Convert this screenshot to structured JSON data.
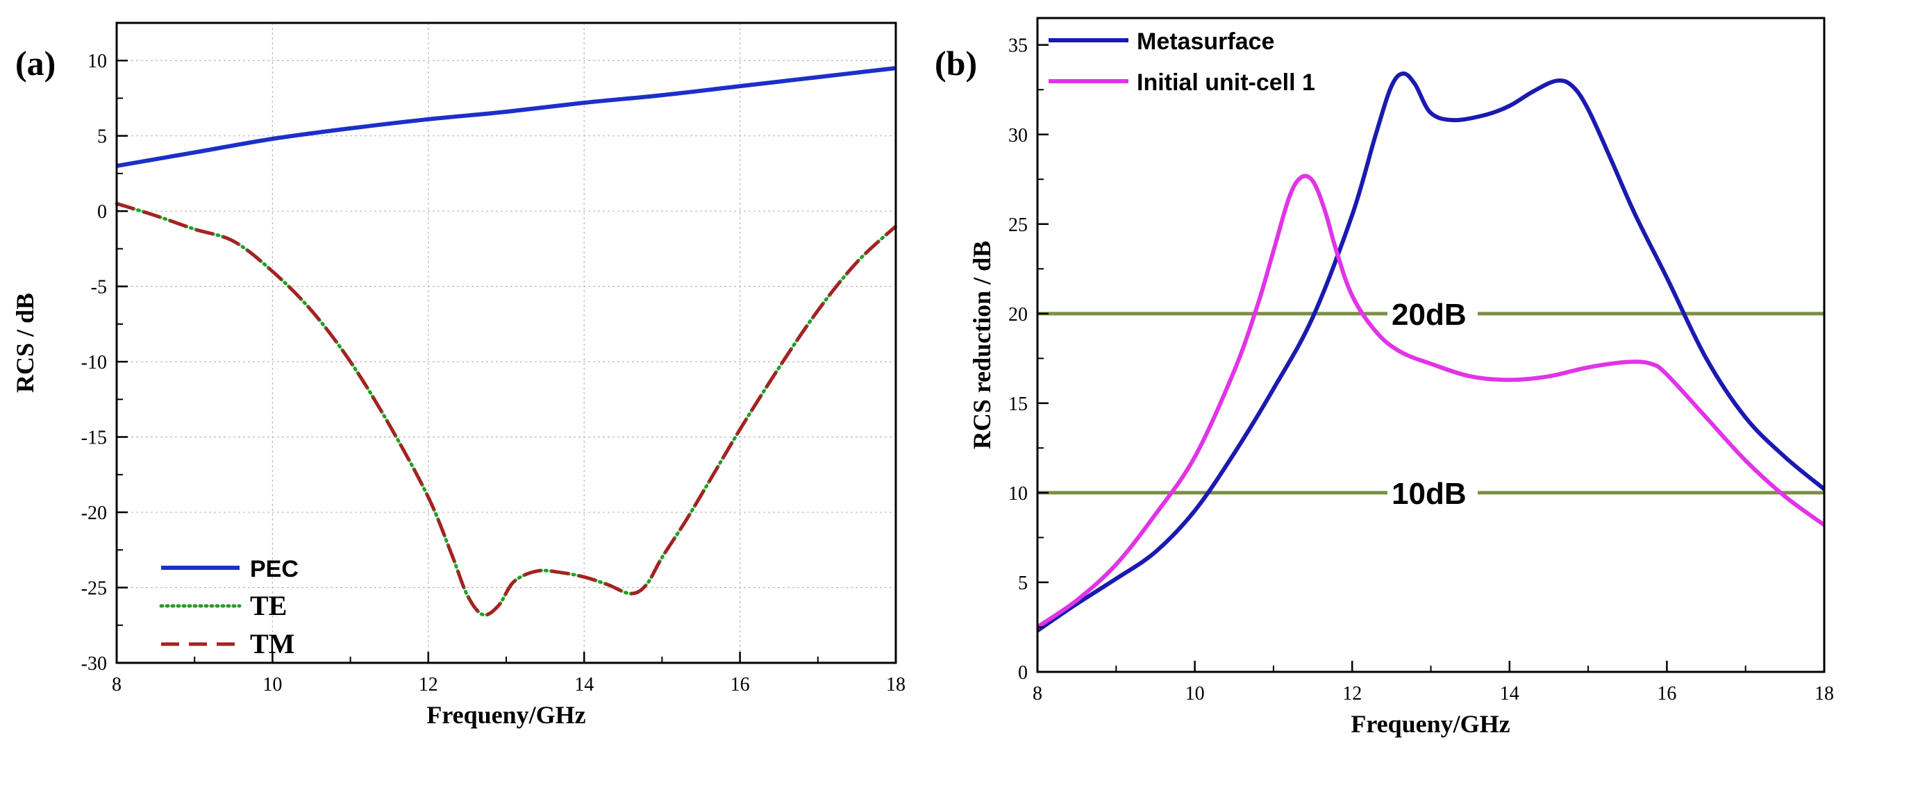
{
  "chart_data": [
    {
      "type": "line",
      "panel_label": "(a)",
      "title": "",
      "xlabel": "Frequeny/GHz",
      "ylabel": "RCS / dB",
      "xlim": [
        8,
        18
      ],
      "ylim": [
        -30,
        12.5
      ],
      "xticks": [
        8,
        10,
        12,
        14,
        16,
        18
      ],
      "yticks": [
        -30,
        -25,
        -20,
        -15,
        -10,
        -5,
        0,
        5,
        10
      ],
      "grid": true,
      "legend_position": "bottom-left",
      "series": [
        {
          "name": "PEC",
          "color": "#1c2fc9",
          "style": "solid",
          "x": [
            8,
            9,
            10,
            11,
            12,
            13,
            14,
            15,
            16,
            17,
            18
          ],
          "y": [
            3.0,
            3.9,
            4.8,
            5.5,
            6.1,
            6.6,
            7.2,
            7.7,
            8.3,
            8.9,
            9.5
          ]
        },
        {
          "name": "TE",
          "color": "#2b9a2b",
          "style": "dotted",
          "x": [
            8,
            8.5,
            9,
            9.5,
            10,
            10.5,
            11,
            11.5,
            12,
            12.3,
            12.5,
            12.7,
            12.9,
            13.1,
            13.4,
            13.7,
            14,
            14.3,
            14.6,
            14.8,
            15,
            15.3,
            15.6,
            16,
            16.5,
            17,
            17.5,
            18
          ],
          "y": [
            0.5,
            -0.3,
            -1.2,
            -2.0,
            -4.0,
            -6.6,
            -10.0,
            -14.2,
            -19.0,
            -22.8,
            -25.5,
            -26.8,
            -26.2,
            -24.6,
            -23.9,
            -24.0,
            -24.3,
            -24.8,
            -25.4,
            -24.8,
            -23.0,
            -20.6,
            -18.0,
            -14.5,
            -10.4,
            -6.6,
            -3.4,
            -1.0
          ]
        },
        {
          "name": "TM",
          "color": "#a52222",
          "style": "dashed",
          "x": [
            8,
            8.5,
            9,
            9.5,
            10,
            10.5,
            11,
            11.5,
            12,
            12.3,
            12.5,
            12.7,
            12.9,
            13.1,
            13.4,
            13.7,
            14,
            14.3,
            14.6,
            14.8,
            15,
            15.3,
            15.6,
            16,
            16.5,
            17,
            17.5,
            18
          ],
          "y": [
            0.5,
            -0.3,
            -1.2,
            -2.0,
            -4.0,
            -6.6,
            -10.0,
            -14.2,
            -19.0,
            -22.8,
            -25.5,
            -26.8,
            -26.2,
            -24.6,
            -23.9,
            -24.0,
            -24.3,
            -24.8,
            -25.4,
            -24.8,
            -23.0,
            -20.6,
            -18.0,
            -14.5,
            -10.4,
            -6.6,
            -3.4,
            -1.0
          ]
        }
      ]
    },
    {
      "type": "line",
      "panel_label": "(b)",
      "title": "",
      "xlabel": "Frequeny/GHz",
      "ylabel": "RCS reduction / dB",
      "xlim": [
        8,
        18
      ],
      "ylim": [
        0,
        36.5
      ],
      "xticks": [
        8,
        10,
        12,
        14,
        16,
        18
      ],
      "yticks": [
        0,
        5,
        10,
        15,
        20,
        25,
        30,
        35
      ],
      "grid": false,
      "legend_position": "top-left",
      "series": [
        {
          "name": "Metasurface",
          "color": "#1a1ab0",
          "style": "solid",
          "x": [
            8,
            8.5,
            9,
            9.5,
            10,
            10.5,
            11,
            11.5,
            12,
            12.3,
            12.5,
            12.65,
            12.8,
            13,
            13.3,
            13.7,
            14,
            14.3,
            14.6,
            14.8,
            15,
            15.3,
            15.6,
            16,
            16.5,
            17,
            17.5,
            18
          ],
          "y": [
            2.3,
            3.8,
            5.2,
            6.7,
            9.0,
            12.2,
            15.8,
            19.8,
            25.5,
            30.0,
            32.7,
            33.4,
            32.8,
            31.2,
            30.8,
            31.1,
            31.6,
            32.4,
            33.0,
            32.7,
            31.4,
            28.5,
            25.5,
            22.0,
            17.5,
            14.2,
            12.0,
            10.2
          ]
        },
        {
          "name": "Initial unit-cell 1",
          "color": "#e034e6",
          "style": "solid",
          "x": [
            8,
            8.5,
            9,
            9.5,
            10,
            10.5,
            10.8,
            11,
            11.2,
            11.35,
            11.5,
            11.65,
            11.8,
            12,
            12.3,
            12.6,
            13,
            13.5,
            14,
            14.5,
            15,
            15.5,
            15.8,
            16,
            16.5,
            17,
            17.5,
            18
          ],
          "y": [
            2.5,
            4.0,
            6.0,
            8.8,
            12.0,
            16.8,
            20.5,
            23.5,
            26.5,
            27.6,
            27.4,
            25.8,
            23.5,
            21.0,
            19.0,
            17.9,
            17.2,
            16.5,
            16.3,
            16.5,
            17.0,
            17.3,
            17.2,
            16.6,
            14.2,
            11.8,
            9.8,
            8.2
          ]
        }
      ],
      "reference_lines": [
        {
          "y": 20,
          "label": "20dB",
          "color": "#7a8f45"
        },
        {
          "y": 10,
          "label": "10dB",
          "color": "#7a8f45"
        }
      ]
    }
  ]
}
